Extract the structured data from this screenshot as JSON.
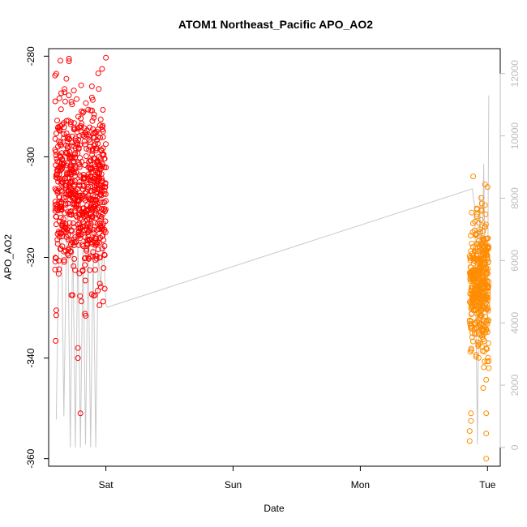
{
  "chart_data": {
    "type": "scatter",
    "title": "ATOM1 Northeast_Pacific APO_AO2",
    "xlabel": "Date",
    "ylabel": "APO_AO2",
    "xlim": [
      -0.45,
      3.1
    ],
    "ylim": [
      -361.5,
      -278.5
    ],
    "y2lim": [
      -600,
      12800
    ],
    "x_ticks": [
      {
        "value": 0,
        "label": "Sat"
      },
      {
        "value": 1,
        "label": "Sun"
      },
      {
        "value": 2,
        "label": "Mon"
      },
      {
        "value": 3,
        "label": "Tue"
      }
    ],
    "y_ticks": [
      -280,
      -300,
      -320,
      -340,
      -360
    ],
    "y2_ticks": [
      0,
      2000,
      4000,
      6000,
      8000,
      10000,
      12000
    ],
    "colors": {
      "series1": "#ff0000",
      "series2": "#ff8c00",
      "line": "#c8c8c8",
      "right_axis": "#bdbdbd"
    },
    "series": [
      {
        "color": "#ff0000",
        "x_range": [
          -0.4,
          0.0
        ],
        "y_mean": -307,
        "y_sd": 8.5,
        "count": 700,
        "outliers": [
          {
            "x": -0.39,
            "y": -283.5
          },
          {
            "x": -0.29,
            "y": -281
          },
          {
            "x": -0.29,
            "y": -280.5
          },
          {
            "x": 0.0,
            "y": -280.3
          },
          {
            "x": -0.11,
            "y": -286
          },
          {
            "x": -0.32,
            "y": -289
          },
          {
            "x": -0.2,
            "y": -351
          },
          {
            "x": -0.22,
            "y": -340
          },
          {
            "x": -0.22,
            "y": -338
          },
          {
            "x": -0.39,
            "y": -330.5
          },
          {
            "x": -0.39,
            "y": -331.5
          }
        ]
      },
      {
        "color": "#ff8c00",
        "x_range": [
          2.86,
          3.01
        ],
        "y_mean": -326,
        "y_sd": 7,
        "count": 420,
        "outliers": [
          {
            "x": 2.98,
            "y": -305.5
          },
          {
            "x": 3.0,
            "y": -306
          },
          {
            "x": 2.87,
            "y": -351
          },
          {
            "x": 2.87,
            "y": -352.5
          },
          {
            "x": 2.86,
            "y": -354.5
          },
          {
            "x": 2.86,
            "y": -356.5
          },
          {
            "x": 2.99,
            "y": -355
          },
          {
            "x": 2.99,
            "y": -360
          },
          {
            "x": 2.99,
            "y": -351
          },
          {
            "x": 3.01,
            "y": -342
          }
        ]
      }
    ],
    "line_series": {
      "axis": "right",
      "color": "#c8c8c8",
      "points": [
        [
          -0.39,
          900
        ],
        [
          -0.37,
          6500
        ],
        [
          -0.35,
          7200
        ],
        [
          -0.33,
          1000
        ],
        [
          -0.31,
          6800
        ],
        [
          -0.3,
          7500
        ],
        [
          -0.28,
          0
        ],
        [
          -0.26,
          7000
        ],
        [
          -0.24,
          0
        ],
        [
          -0.22,
          6800
        ],
        [
          -0.2,
          0
        ],
        [
          -0.18,
          6500
        ],
        [
          -0.16,
          100
        ],
        [
          -0.14,
          6700
        ],
        [
          -0.12,
          0
        ],
        [
          -0.1,
          6500
        ],
        [
          -0.08,
          0
        ],
        [
          -0.06,
          6200
        ],
        [
          -0.04,
          5200
        ],
        [
          -0.02,
          6600
        ],
        [
          0.0,
          4600
        ],
        [
          0.01,
          4500
        ],
        [
          2.88,
          8300
        ],
        [
          2.9,
          7700
        ],
        [
          2.92,
          100
        ],
        [
          2.94,
          8100
        ],
        [
          2.95,
          3500
        ],
        [
          2.97,
          9100
        ],
        [
          2.98,
          6000
        ],
        [
          3.0,
          4200
        ],
        [
          3.01,
          11300
        ]
      ]
    }
  }
}
